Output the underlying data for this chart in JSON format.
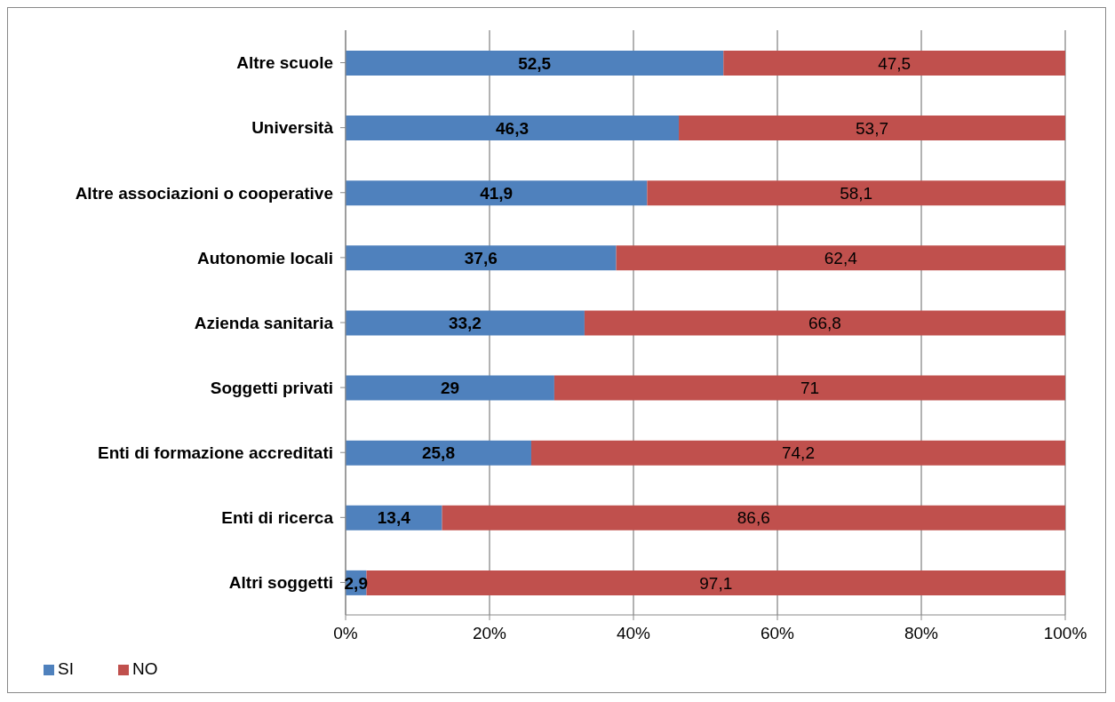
{
  "chart_data": {
    "type": "bar",
    "orientation": "horizontal",
    "stacked": true,
    "categories": [
      "Altre scuole",
      "Università",
      "Altre associazioni o cooperative",
      "Autonomie locali",
      "Azienda sanitaria",
      "Soggetti privati",
      "Enti di formazione accreditati",
      "Enti di ricerca",
      "Altri soggetti"
    ],
    "series": [
      {
        "name": "SI",
        "color": "#4f81bd",
        "values": [
          52.5,
          46.3,
          41.9,
          37.6,
          33.2,
          29,
          25.8,
          13.4,
          2.9
        ],
        "value_labels": [
          "52,5",
          "46,3",
          "41,9",
          "37,6",
          "33,2",
          "29",
          "25,8",
          "13,4",
          "2,9"
        ]
      },
      {
        "name": "NO",
        "color": "#c0504d",
        "values": [
          47.5,
          53.7,
          58.1,
          62.4,
          66.8,
          71,
          74.2,
          86.6,
          97.1
        ],
        "value_labels": [
          "47,5",
          "53,7",
          "58,1",
          "62,4",
          "66,8",
          "71",
          "74,2",
          "86,6",
          "97,1"
        ]
      }
    ],
    "xlim": [
      0,
      100
    ],
    "xticks": [
      {
        "value": 0,
        "label": "0%"
      },
      {
        "value": 20,
        "label": "20%"
      },
      {
        "value": 40,
        "label": "40%"
      },
      {
        "value": 60,
        "label": "60%"
      },
      {
        "value": 80,
        "label": "80%"
      },
      {
        "value": 100,
        "label": "100%"
      }
    ],
    "grid": "x",
    "legend": "bottom left"
  }
}
